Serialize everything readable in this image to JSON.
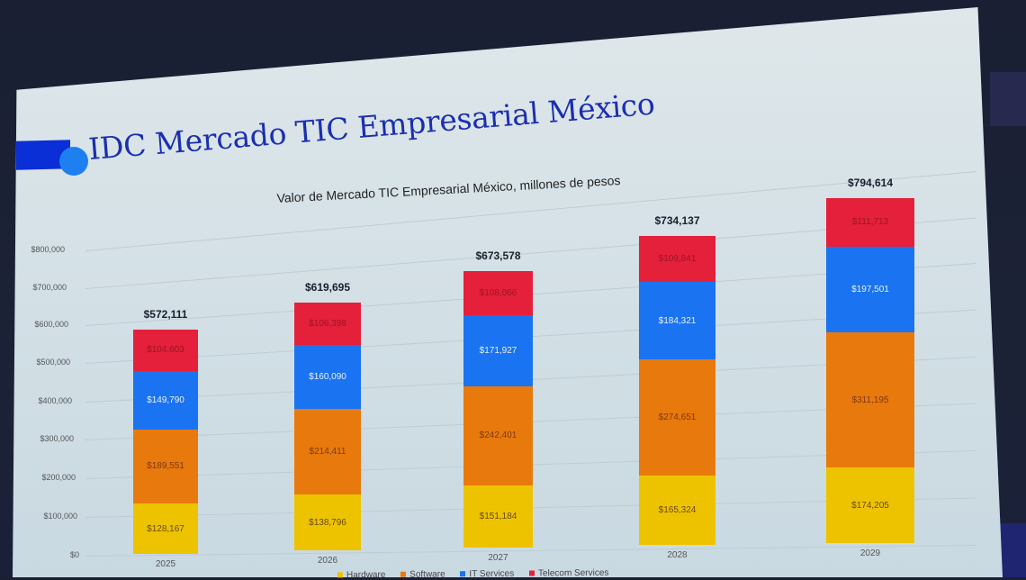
{
  "slide": {
    "title": "IDC Mercado TIC Empresarial México"
  },
  "colors": {
    "hardware": "#edc300",
    "software": "#e8790c",
    "it_services": "#1a73f0",
    "telecom_services": "#e5203a",
    "title": "#1b2fb0",
    "accent_bar": "#0a2fd6",
    "accent_dot": "#1e7ff0"
  },
  "chart_data": {
    "type": "bar",
    "stacked": true,
    "title": "Valor de Mercado TIC Empresarial México, millones de pesos",
    "xlabel": "",
    "ylabel": "",
    "categories": [
      "2025",
      "2026",
      "2027",
      "2028",
      "2029"
    ],
    "series": [
      {
        "name": "Hardware",
        "values": [
          128167,
          138796,
          151184,
          165324,
          174205
        ]
      },
      {
        "name": "Software",
        "values": [
          189551,
          214411,
          242401,
          274651,
          311195
        ]
      },
      {
        "name": "IT Services",
        "values": [
          149790,
          160090,
          171927,
          184321,
          197501
        ]
      },
      {
        "name": "Telecom Services",
        "values": [
          104603,
          106398,
          108066,
          109841,
          111713
        ]
      }
    ],
    "totals": [
      572111,
      619695,
      673578,
      734137,
      794614
    ],
    "yticks": [
      "$0",
      "$100,000",
      "$200,000",
      "$300,000",
      "$400,000",
      "$500,000",
      "$600,000",
      "$700,000",
      "$800,000"
    ],
    "ylim": [
      0,
      800000
    ],
    "grid": true,
    "legend_position": "bottom"
  },
  "labels": {
    "totals": [
      "$572,111",
      "$619,695",
      "$673,578",
      "$734,137",
      "$794,614"
    ],
    "hardware": [
      "$128,167",
      "$138,796",
      "$151,184",
      "$165,324",
      "$174,205"
    ],
    "software": [
      "$189,551",
      "$214,411",
      "$242,401",
      "$274,651",
      "$311,195"
    ],
    "it_services": [
      "$149,790",
      "$160,090",
      "$171,927",
      "$184,321",
      "$197,501"
    ],
    "telecom_services": [
      "$104,603",
      "$106,398",
      "$108,066",
      "$109,841",
      "$111,713"
    ]
  },
  "legend": [
    "Hardware",
    "Software",
    "IT Services",
    "Telecom Services"
  ]
}
